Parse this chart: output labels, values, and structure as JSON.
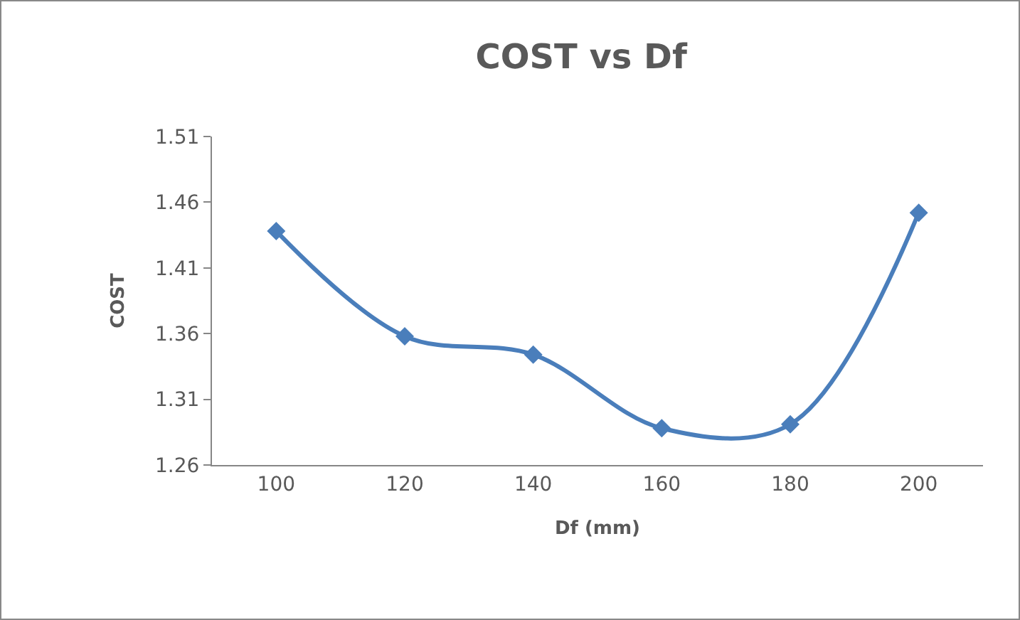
{
  "chart_data": {
    "type": "line",
    "title": "COST vs Df",
    "xlabel": "Df (mm)",
    "ylabel": "COST",
    "categories": [
      "100",
      "120",
      "140",
      "160",
      "180",
      "200"
    ],
    "series": [
      {
        "color": "#4a7ebb",
        "values": [
          1.438,
          1.358,
          1.344,
          1.288,
          1.291,
          1.452
        ]
      }
    ],
    "ylim": [
      1.26,
      1.51
    ],
    "yticks": [
      1.26,
      1.31,
      1.36,
      1.41,
      1.46,
      1.51
    ],
    "grid": false,
    "marker": "diamond",
    "line_style": "solid"
  }
}
